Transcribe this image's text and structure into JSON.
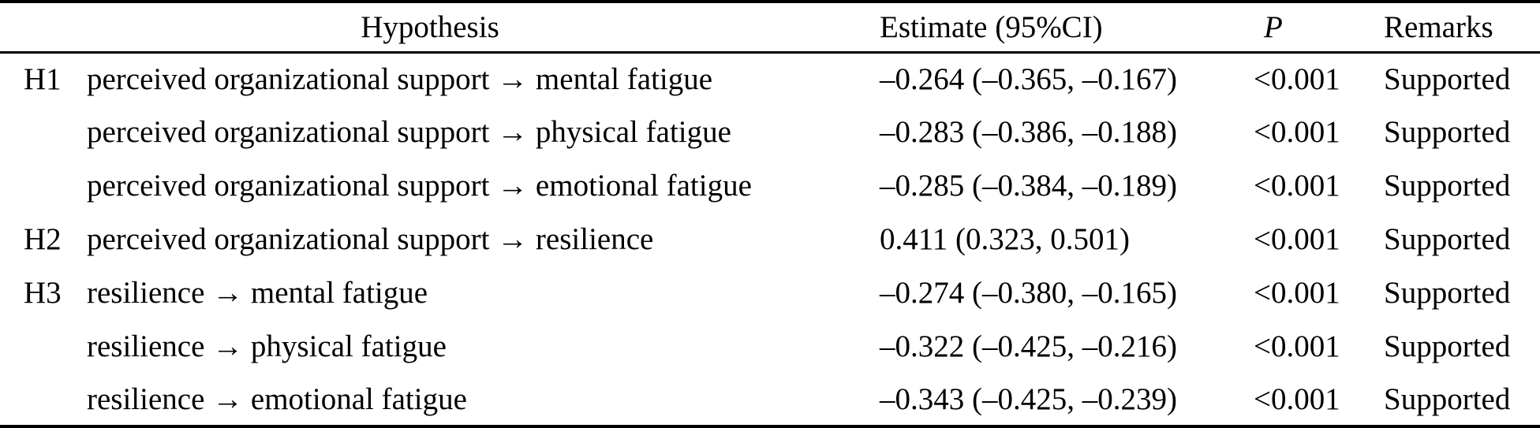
{
  "table": {
    "headers": {
      "hypothesis": "Hypothesis",
      "estimate": "Estimate (95%CI)",
      "p": "P",
      "remarks": "Remarks"
    },
    "rows": [
      {
        "id": "H1",
        "hypothesis": "perceived organizational support → mental fatigue",
        "estimate": "–0.264 (–0.365, –0.167)",
        "p": "<0.001",
        "remarks": "Supported"
      },
      {
        "id": "",
        "hypothesis": "perceived organizational support → physical fatigue",
        "estimate": "–0.283 (–0.386, –0.188)",
        "p": "<0.001",
        "remarks": "Supported"
      },
      {
        "id": "",
        "hypothesis": "perceived organizational support → emotional fatigue",
        "estimate": "–0.285 (–0.384, –0.189)",
        "p": "<0.001",
        "remarks": "Supported"
      },
      {
        "id": "H2",
        "hypothesis": "perceived organizational support → resilience",
        "estimate": "0.411 (0.323, 0.501)",
        "p": "<0.001",
        "remarks": "Supported"
      },
      {
        "id": "H3",
        "hypothesis": "resilience → mental fatigue",
        "estimate": "–0.274 (–0.380, –0.165)",
        "p": "<0.001",
        "remarks": "Supported"
      },
      {
        "id": "",
        "hypothesis": "resilience → physical fatigue",
        "estimate": "–0.322 (–0.425, –0.216)",
        "p": "<0.001",
        "remarks": "Supported"
      },
      {
        "id": "",
        "hypothesis": "resilience → emotional fatigue",
        "estimate": "–0.343 (–0.425, –0.239)",
        "p": "<0.001",
        "remarks": "Supported"
      }
    ],
    "colors": {
      "text": "#000000",
      "background": "#ffffff",
      "rule": "#000000"
    }
  }
}
